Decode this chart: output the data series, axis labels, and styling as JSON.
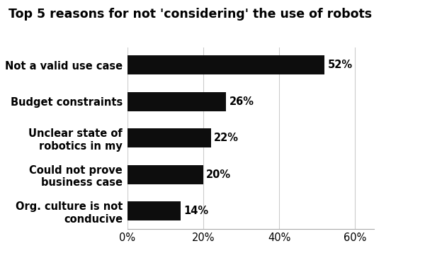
{
  "title": "Top 5 reasons for not 'considering' the use of robots",
  "categories": [
    "Org. culture is not\nconducive",
    "Could not prove\nbusiness case",
    "Unclear state of\nrobotics in my",
    "Budget constraints",
    "Not a valid use case"
  ],
  "values": [
    14,
    20,
    22,
    26,
    52
  ],
  "bar_color": "#0d0d0d",
  "label_color": "#000000",
  "background_color": "#ffffff",
  "xlim": [
    0,
    65
  ],
  "xticks": [
    0,
    20,
    40,
    60
  ],
  "xtick_labels": [
    "0%",
    "20%",
    "40%",
    "60%"
  ],
  "title_fontsize": 12.5,
  "label_fontsize": 10.5,
  "value_fontsize": 10.5,
  "grid_color": "#cccccc",
  "bar_height": 0.52
}
